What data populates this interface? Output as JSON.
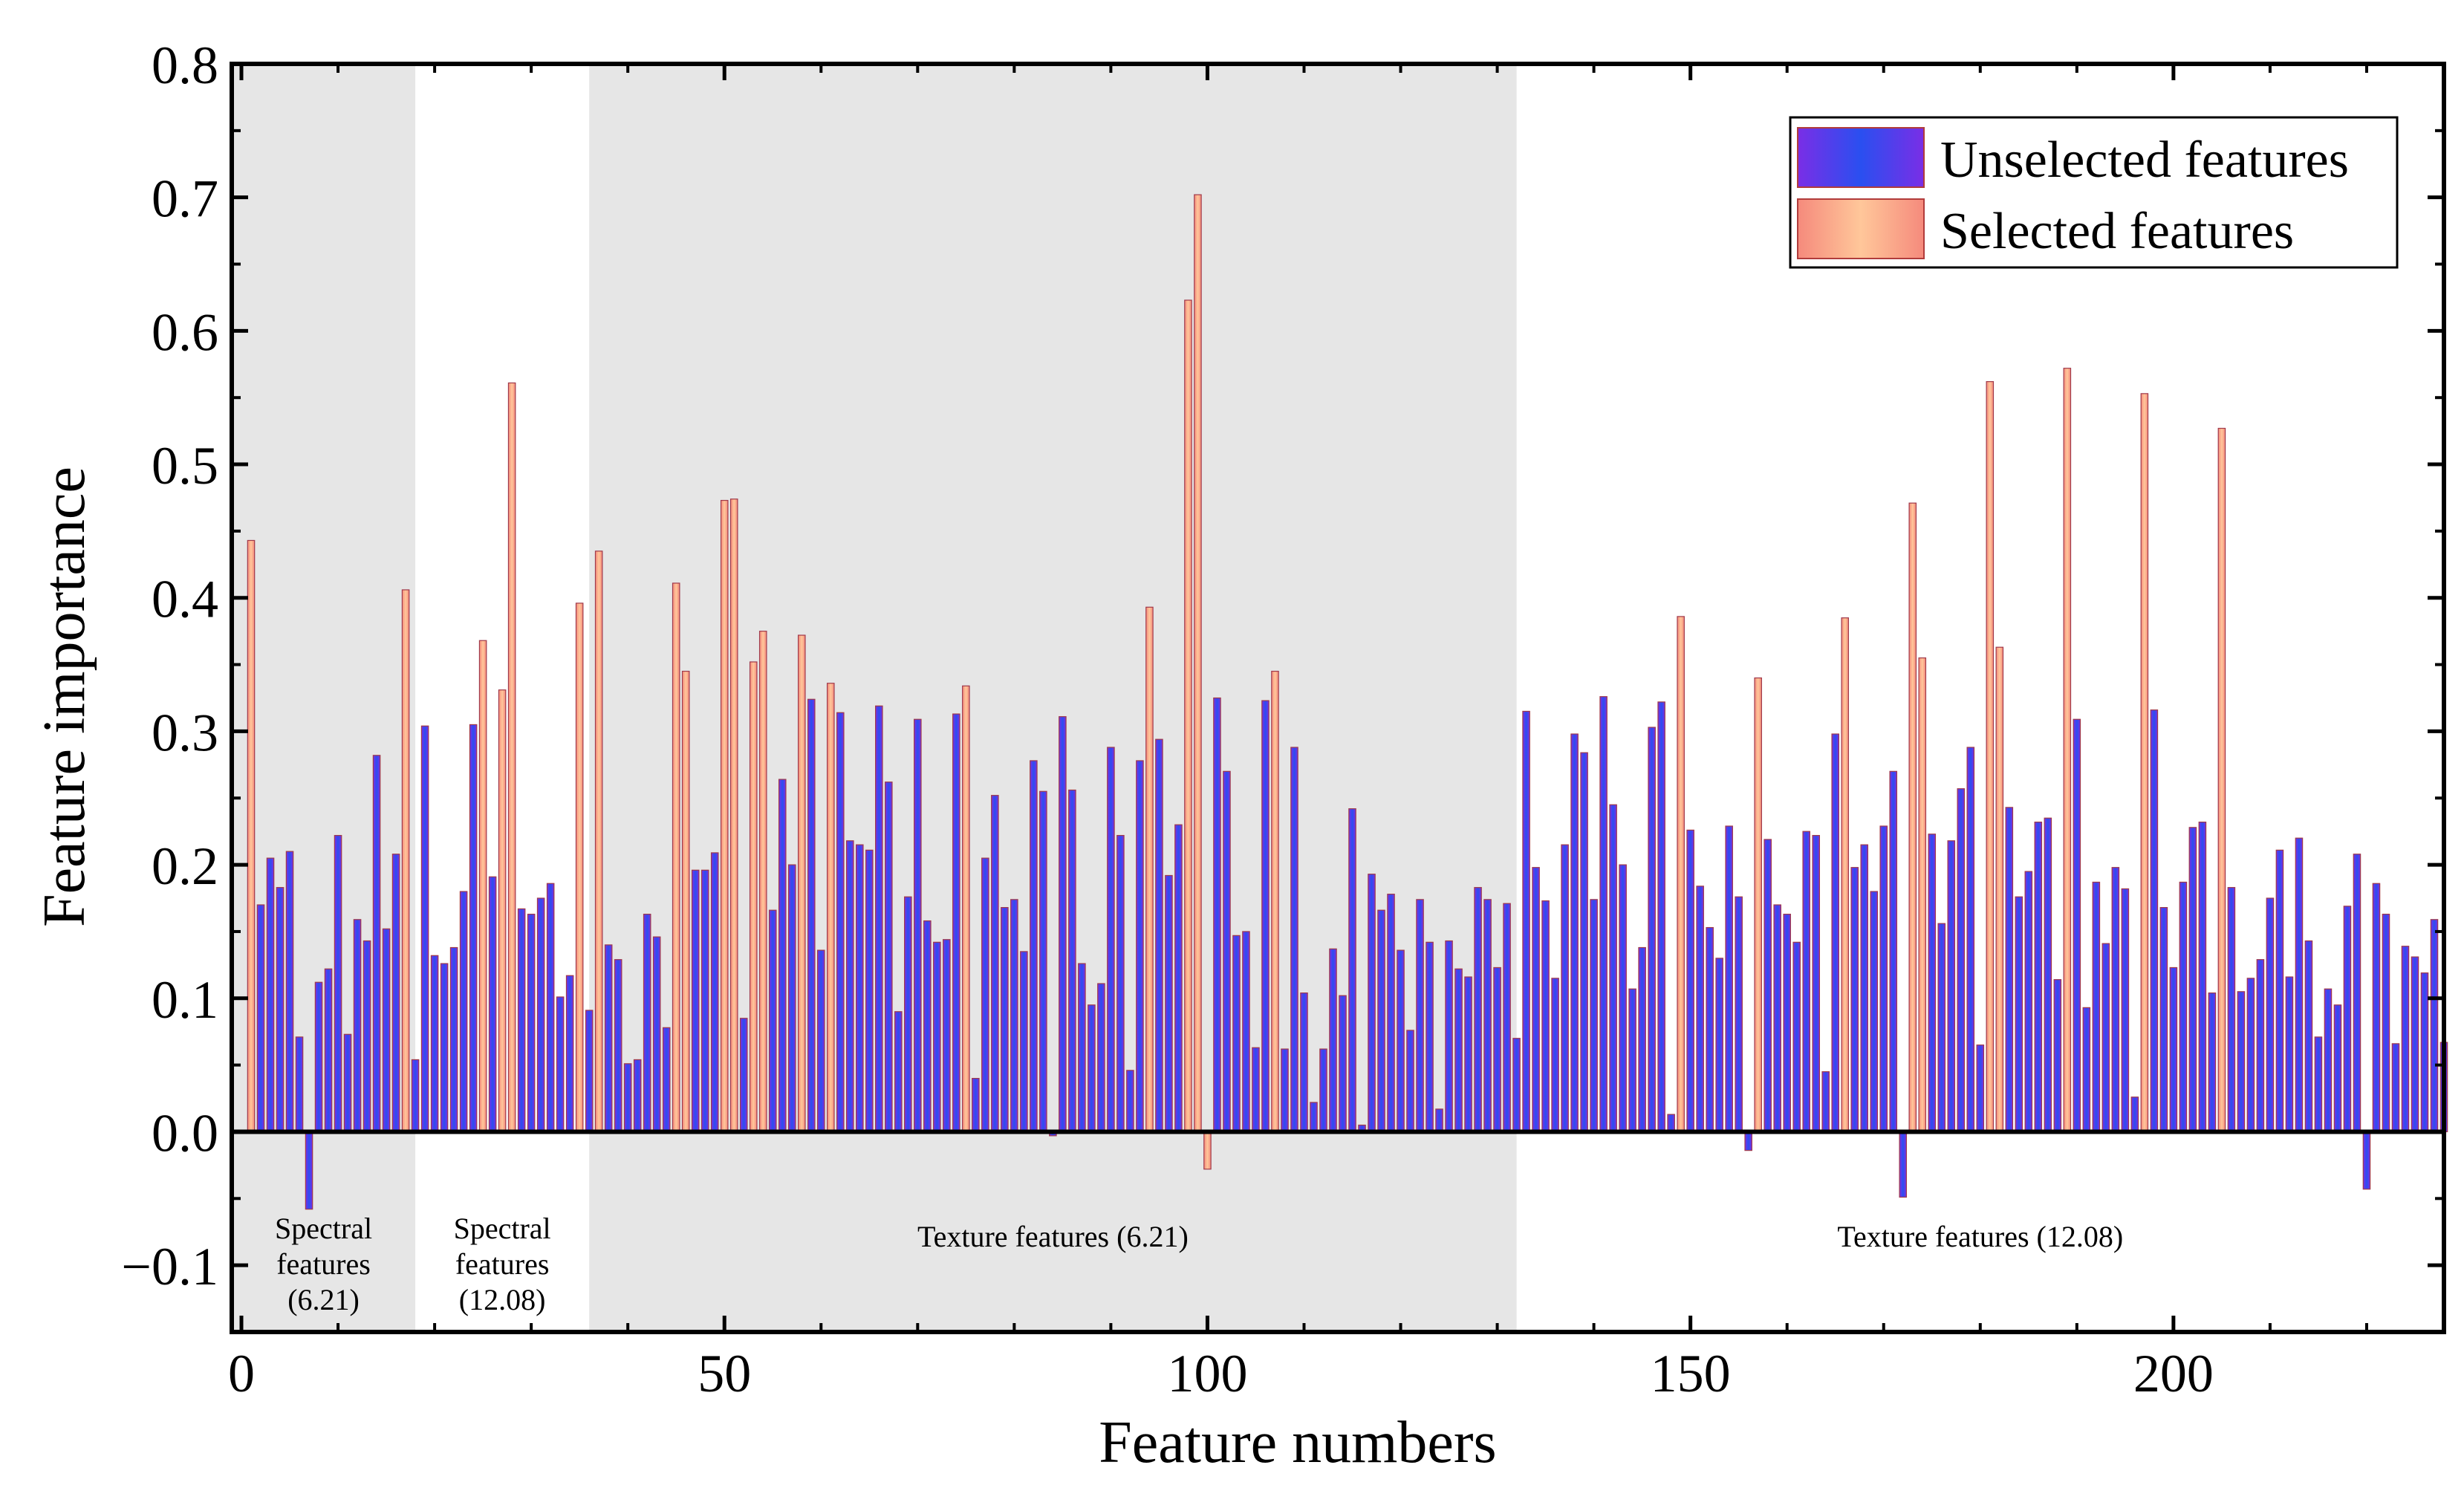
{
  "chart_data": {
    "type": "bar",
    "title": "",
    "xlabel": "Feature numbers",
    "ylabel": "Feature importance",
    "xlim": [
      -1,
      228
    ],
    "ylim": [
      -0.15,
      0.8
    ],
    "xticks": [
      0,
      50,
      100,
      150,
      200
    ],
    "xtick_labels": [
      "0",
      "50",
      "100",
      "150",
      "200"
    ],
    "yticks": [
      -0.1,
      0.0,
      0.1,
      0.2,
      0.3,
      0.4,
      0.5,
      0.6,
      0.7,
      0.8
    ],
    "ytick_labels": [
      "−0.1",
      "0.0",
      "0.1",
      "0.2",
      "0.3",
      "0.4",
      "0.5",
      "0.6",
      "0.7",
      "0.8"
    ],
    "legend": {
      "position": "top-right",
      "entries": [
        {
          "label": "Unselected features",
          "color": "#4b2ee8"
        },
        {
          "label": "Selected features",
          "color": "#f7a98c"
        }
      ]
    },
    "regions": [
      {
        "x_start": -1,
        "x_end": 18,
        "shaded": true,
        "label_lines": [
          "Spectral",
          "features",
          "(6.21)"
        ]
      },
      {
        "x_start": 18,
        "x_end": 36,
        "shaded": false,
        "label_lines": [
          "Spectral",
          "features",
          "(12.08)"
        ]
      },
      {
        "x_start": 36,
        "x_end": 132,
        "shaded": true,
        "label_lines": [
          "Texture features (6.21)"
        ]
      },
      {
        "x_start": 132,
        "x_end": 228,
        "shaded": false,
        "label_lines": [
          "Texture features (12.08)"
        ]
      }
    ],
    "values": [
      0.0,
      0.443,
      0.17,
      0.205,
      0.183,
      0.21,
      0.071,
      -0.058,
      0.112,
      0.122,
      0.222,
      0.073,
      0.159,
      0.143,
      0.282,
      0.152,
      0.208,
      0.406,
      0.054,
      0.304,
      0.132,
      0.126,
      0.138,
      0.18,
      0.305,
      0.368,
      0.191,
      0.331,
      0.561,
      0.167,
      0.163,
      0.175,
      0.186,
      0.101,
      0.117,
      0.396,
      0.091,
      0.435,
      0.14,
      0.129,
      0.051,
      0.054,
      0.163,
      0.146,
      0.078,
      0.411,
      0.345,
      0.196,
      0.196,
      0.209,
      0.473,
      0.474,
      0.085,
      0.352,
      0.375,
      0.166,
      0.264,
      0.2,
      0.372,
      0.324,
      0.136,
      0.336,
      0.314,
      0.218,
      0.215,
      0.211,
      0.319,
      0.262,
      0.09,
      0.176,
      0.309,
      0.158,
      0.142,
      0.144,
      0.313,
      0.334,
      0.04,
      0.205,
      0.252,
      0.168,
      0.174,
      0.135,
      0.278,
      0.255,
      -0.003,
      0.311,
      0.256,
      0.126,
      0.095,
      0.111,
      0.288,
      0.222,
      0.046,
      0.278,
      0.393,
      0.294,
      0.192,
      0.23,
      0.623,
      0.702,
      -0.028,
      0.325,
      0.27,
      0.147,
      0.15,
      0.063,
      0.323,
      0.345,
      0.062,
      0.288,
      0.104,
      0.022,
      0.062,
      0.137,
      0.102,
      0.242,
      0.005,
      0.193,
      0.166,
      0.178,
      0.136,
      0.076,
      0.174,
      0.142,
      0.017,
      0.143,
      0.122,
      0.116,
      0.183,
      0.174,
      0.123,
      0.171,
      0.07,
      0.315,
      0.198,
      0.173,
      0.115,
      0.215,
      0.298,
      0.284,
      0.174,
      0.326,
      0.245,
      0.2,
      0.107,
      0.138,
      0.303,
      0.322,
      0.013,
      0.386,
      0.226,
      0.184,
      0.153,
      0.13,
      0.229,
      0.176,
      -0.014,
      0.34,
      0.219,
      0.17,
      0.163,
      0.142,
      0.225,
      0.222,
      0.045,
      0.298,
      0.385,
      0.198,
      0.215,
      0.18,
      0.229,
      0.27,
      -0.049,
      0.471,
      0.355,
      0.223,
      0.156,
      0.218,
      0.257,
      0.288,
      0.065,
      0.562,
      0.363,
      0.243,
      0.176,
      0.195,
      0.232,
      0.235,
      0.114,
      0.572,
      0.309,
      0.093,
      0.187,
      0.141,
      0.198,
      0.182,
      0.026,
      0.553,
      0.316,
      0.168,
      0.123,
      0.187,
      0.228,
      0.232,
      0.104,
      0.527,
      0.183,
      0.105,
      0.115,
      0.129,
      0.175,
      0.211,
      0.116,
      0.22,
      0.143,
      0.071,
      0.107,
      0.095,
      0.169,
      0.208,
      -0.043,
      0.186,
      0.163,
      0.066,
      0.139,
      0.131,
      0.119,
      0.159,
      0.067
    ],
    "selected_indices": [
      1,
      17,
      25,
      27,
      28,
      35,
      37,
      45,
      46,
      50,
      51,
      53,
      54,
      58,
      61,
      75,
      94,
      98,
      99,
      100,
      107,
      149,
      157,
      166,
      173,
      174,
      181,
      182,
      189,
      197,
      205
    ]
  }
}
